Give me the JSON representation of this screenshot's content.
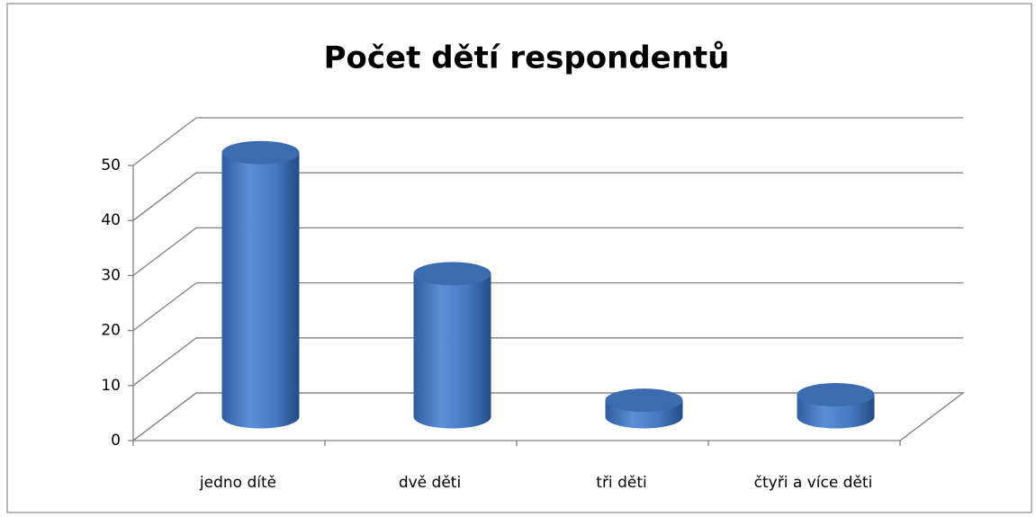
{
  "chart_data": {
    "type": "bar3d",
    "title": "Počet dětí respondentů",
    "categories": [
      "jedno dítě",
      "dvě děti",
      "tři děti",
      "čtyři a více děti"
    ],
    "values": [
      48,
      26,
      3,
      4
    ],
    "color": "#4a7ebf",
    "ylim": [
      0,
      50
    ],
    "yticks": [
      0,
      10,
      20,
      30,
      40,
      50
    ],
    "grid": true
  }
}
